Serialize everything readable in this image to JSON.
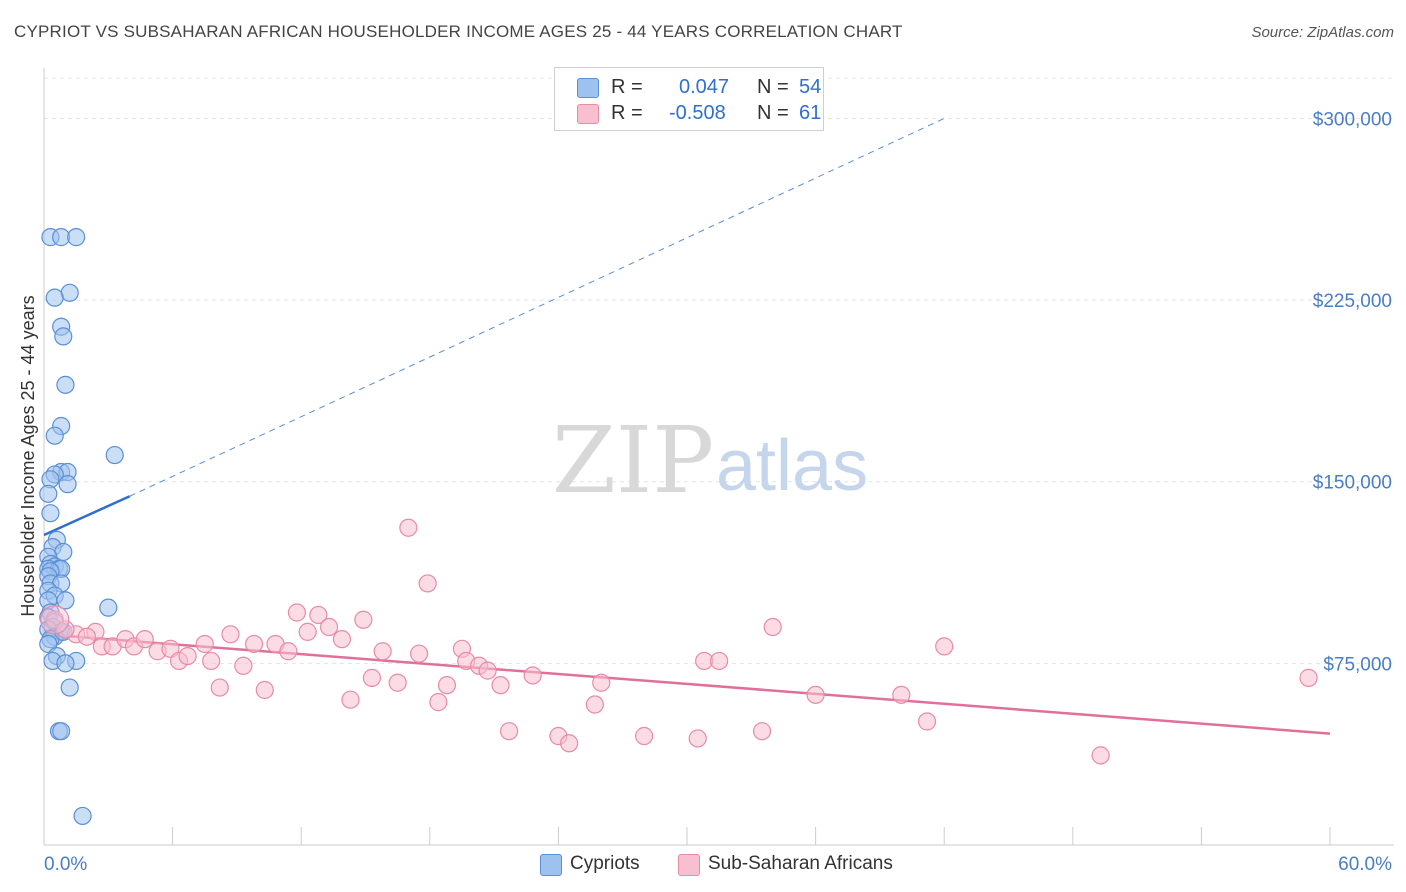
{
  "title": "CYPRIOT VS SUBSAHARAN AFRICAN HOUSEHOLDER INCOME AGES 25 - 44 YEARS CORRELATION CHART",
  "source": "Source: ZipAtlas.com",
  "watermark": {
    "zip": "ZIP",
    "atlas": "atlas"
  },
  "legend_top": {
    "rows": [
      {
        "r_label": "R =",
        "r_value": "0.047",
        "n_label": "N =",
        "n_value": "54",
        "color": "#9ec2ef",
        "border": "#5b8fd6"
      },
      {
        "r_label": "R =",
        "r_value": "-0.508",
        "n_label": "N =",
        "n_value": "61",
        "color": "#f7bfd0",
        "border": "#e88aa8"
      }
    ]
  },
  "chart_data": {
    "type": "scatter",
    "title": "CYPRIOT VS SUBSAHARAN AFRICAN HOUSEHOLDER INCOME AGES 25 - 44 YEARS CORRELATION CHART",
    "xlabel": "",
    "ylabel": "Householder Income Ages 25 - 44 years",
    "xlim": [
      0,
      60
    ],
    "ylim": [
      0,
      320000
    ],
    "x_tick_labels": [
      "0.0%",
      "60.0%"
    ],
    "y_ticks": [
      75000,
      150000,
      225000,
      300000
    ],
    "y_tick_labels": [
      "$75,000",
      "$150,000",
      "$225,000",
      "$300,000"
    ],
    "grid": true,
    "legend_position": "bottom",
    "series": [
      {
        "name": "Cypriots",
        "color": "#9ec2ef",
        "stroke": "#5b8fd6",
        "trend_color": "#2f6fd0",
        "trend": {
          "x0": 0,
          "y0": 128000,
          "x1": 4,
          "y1": 144000,
          "extend_to_x": 42,
          "extend_to_y": 300000
        },
        "points": [
          [
            0.3,
            251000
          ],
          [
            0.8,
            251000
          ],
          [
            1.5,
            251000
          ],
          [
            1.2,
            228000
          ],
          [
            0.5,
            226000
          ],
          [
            0.8,
            214000
          ],
          [
            0.9,
            210000
          ],
          [
            1.0,
            190000
          ],
          [
            0.8,
            173000
          ],
          [
            0.5,
            169000
          ],
          [
            3.3,
            161000
          ],
          [
            0.8,
            154000
          ],
          [
            1.1,
            154000
          ],
          [
            0.5,
            153000
          ],
          [
            0.3,
            151000
          ],
          [
            1.1,
            149000
          ],
          [
            0.2,
            145000
          ],
          [
            0.3,
            137000
          ],
          [
            0.6,
            126000
          ],
          [
            0.4,
            123000
          ],
          [
            0.9,
            121000
          ],
          [
            0.2,
            119000
          ],
          [
            0.3,
            116000
          ],
          [
            0.5,
            115000
          ],
          [
            0.2,
            114000
          ],
          [
            0.7,
            114000
          ],
          [
            0.8,
            114000
          ],
          [
            0.3,
            113000
          ],
          [
            0.2,
            111000
          ],
          [
            0.3,
            108000
          ],
          [
            0.8,
            108000
          ],
          [
            0.2,
            105000
          ],
          [
            0.5,
            103000
          ],
          [
            1.0,
            101000
          ],
          [
            0.2,
            101000
          ],
          [
            3.0,
            98000
          ],
          [
            0.3,
            96000
          ],
          [
            0.2,
            94000
          ],
          [
            0.5,
            92000
          ],
          [
            0.4,
            90000
          ],
          [
            0.2,
            89000
          ],
          [
            0.8,
            88000
          ],
          [
            0.5,
            86000
          ],
          [
            0.3,
            85000
          ],
          [
            0.2,
            83000
          ],
          [
            0.6,
            78000
          ],
          [
            0.4,
            76000
          ],
          [
            1.5,
            76000
          ],
          [
            1.0,
            75000
          ],
          [
            1.2,
            65000
          ],
          [
            0.7,
            47000
          ],
          [
            0.8,
            47000
          ],
          [
            1.8,
            12000
          ],
          [
            0.9,
            88000
          ]
        ]
      },
      {
        "name": "Sub-Saharan Africans",
        "color": "#f7bfd0",
        "stroke": "#e88aa8",
        "trend_color": "#e0709a",
        "trend": {
          "x0": 0,
          "y0": 87000,
          "x1": 60,
          "y1": 46000
        },
        "points": [
          [
            0.5,
            93000
          ],
          [
            1.5,
            87000
          ],
          [
            2.4,
            88000
          ],
          [
            2.0,
            86000
          ],
          [
            2.7,
            82000
          ],
          [
            3.2,
            82000
          ],
          [
            3.8,
            85000
          ],
          [
            4.2,
            82000
          ],
          [
            4.7,
            85000
          ],
          [
            5.3,
            80000
          ],
          [
            5.9,
            81000
          ],
          [
            6.3,
            76000
          ],
          [
            6.7,
            78000
          ],
          [
            7.5,
            83000
          ],
          [
            7.8,
            76000
          ],
          [
            8.2,
            65000
          ],
          [
            8.7,
            87000
          ],
          [
            9.3,
            74000
          ],
          [
            9.8,
            83000
          ],
          [
            10.3,
            64000
          ],
          [
            10.8,
            83000
          ],
          [
            11.4,
            80000
          ],
          [
            11.8,
            96000
          ],
          [
            12.3,
            88000
          ],
          [
            12.8,
            95000
          ],
          [
            13.3,
            90000
          ],
          [
            13.9,
            85000
          ],
          [
            14.3,
            60000
          ],
          [
            14.9,
            93000
          ],
          [
            15.3,
            69000
          ],
          [
            15.8,
            80000
          ],
          [
            16.5,
            67000
          ],
          [
            17.0,
            131000
          ],
          [
            17.5,
            79000
          ],
          [
            17.9,
            108000
          ],
          [
            18.4,
            59000
          ],
          [
            18.8,
            66000
          ],
          [
            19.5,
            81000
          ],
          [
            19.7,
            76000
          ],
          [
            20.3,
            74000
          ],
          [
            20.7,
            72000
          ],
          [
            21.3,
            66000
          ],
          [
            21.7,
            47000
          ],
          [
            22.8,
            70000
          ],
          [
            24.0,
            45000
          ],
          [
            24.5,
            42000
          ],
          [
            25.7,
            58000
          ],
          [
            26.0,
            67000
          ],
          [
            28.0,
            45000
          ],
          [
            30.5,
            44000
          ],
          [
            30.8,
            76000
          ],
          [
            31.5,
            76000
          ],
          [
            33.5,
            47000
          ],
          [
            34.0,
            90000
          ],
          [
            36.0,
            62000
          ],
          [
            40.0,
            62000
          ],
          [
            41.2,
            51000
          ],
          [
            42.0,
            82000
          ],
          [
            49.3,
            37000
          ],
          [
            59.0,
            69000
          ],
          [
            1.0,
            89000
          ]
        ]
      }
    ]
  },
  "legend_bottom": {
    "items": [
      {
        "label": "Cypriots",
        "color": "#9ec2ef",
        "border": "#5b8fd6"
      },
      {
        "label": "Sub-Saharan Africans",
        "color": "#f7bfd0",
        "border": "#e88aa8"
      }
    ]
  }
}
